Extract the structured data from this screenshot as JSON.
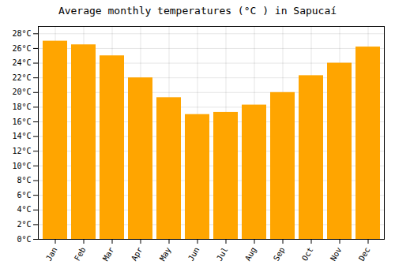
{
  "chart_data": {
    "type": "bar",
    "title": "Average monthly temperatures (°C ) in Sapucaí",
    "categories": [
      "Jan",
      "Feb",
      "Mar",
      "Apr",
      "May",
      "Jun",
      "Jul",
      "Aug",
      "Sep",
      "Oct",
      "Nov",
      "Dec"
    ],
    "values": [
      27.0,
      26.5,
      25.0,
      22.0,
      19.3,
      17.0,
      17.3,
      18.3,
      20.0,
      22.3,
      24.0,
      26.2
    ],
    "color": "#FFA500",
    "ylim": [
      0,
      29
    ],
    "yticks": [
      {
        "value": 0,
        "label": "0°C"
      },
      {
        "value": 2,
        "label": "2°C"
      },
      {
        "value": 4,
        "label": "4°C"
      },
      {
        "value": 6,
        "label": "6°C"
      },
      {
        "value": 8,
        "label": "8°C"
      },
      {
        "value": 10,
        "label": "10°C"
      },
      {
        "value": 12,
        "label": "12°C"
      },
      {
        "value": 14,
        "label": "14°C"
      },
      {
        "value": 16,
        "label": "16°C"
      },
      {
        "value": 18,
        "label": "18°C"
      },
      {
        "value": 20,
        "label": "20°C"
      },
      {
        "value": 22,
        "label": "22°C"
      },
      {
        "value": 24,
        "label": "24°C"
      },
      {
        "value": 26,
        "label": "26°C"
      },
      {
        "value": 28,
        "label": "28°C"
      }
    ],
    "grid": true
  }
}
